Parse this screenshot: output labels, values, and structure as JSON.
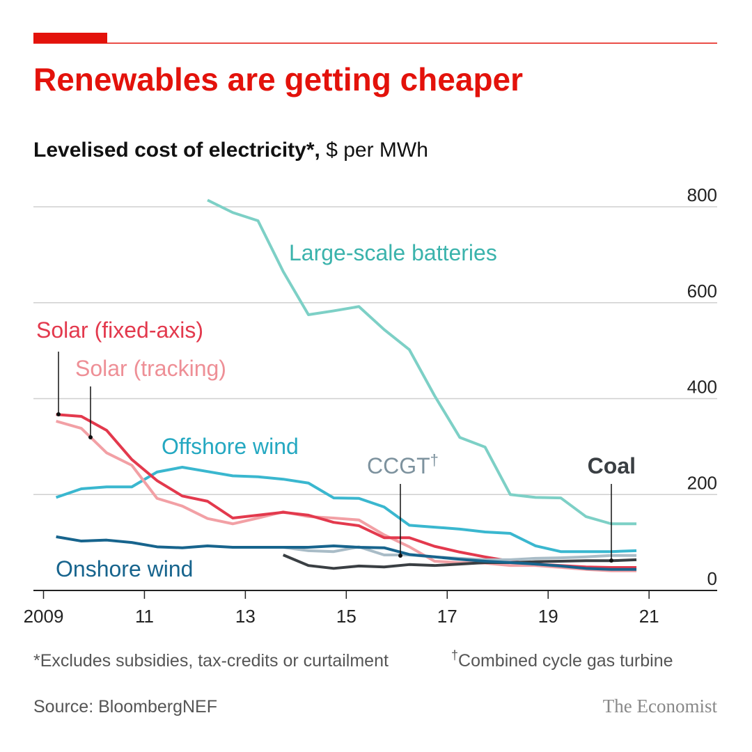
{
  "chart_data": {
    "type": "line",
    "title": "Renewables are getting cheaper",
    "subtitle_bold": "Levelised cost of electricity*,",
    "subtitle_rest": "$ per MWh",
    "x": [
      2009.25,
      2009.75,
      2010.25,
      2010.75,
      2011.25,
      2011.75,
      2012.25,
      2012.75,
      2013.25,
      2013.75,
      2014.25,
      2014.75,
      2015.25,
      2015.75,
      2016.25,
      2016.75,
      2017.25,
      2017.75,
      2018.25,
      2018.75,
      2019.25,
      2019.75,
      2020.25,
      2020.75
    ],
    "xlim": [
      2008.8,
      2022.35
    ],
    "xticks": [
      {
        "value": 2009,
        "label": "2009"
      },
      {
        "value": 2011,
        "label": "11"
      },
      {
        "value": 2013,
        "label": "13"
      },
      {
        "value": 2015,
        "label": "15"
      },
      {
        "value": 2017,
        "label": "17"
      },
      {
        "value": 2019,
        "label": "19"
      },
      {
        "value": 2021,
        "label": "21"
      }
    ],
    "ylim": [
      0,
      800
    ],
    "yticks": [
      0,
      200,
      400,
      600,
      800
    ],
    "grid": true,
    "series": [
      {
        "name": "Large-scale batteries",
        "color": "#7dd0c6",
        "values": [
          null,
          null,
          null,
          null,
          null,
          null,
          814,
          788,
          771,
          665,
          575,
          583,
          592,
          544,
          502,
          406,
          319,
          299,
          200,
          194,
          193,
          154,
          139,
          139
        ]
      },
      {
        "name": "Offshore wind",
        "color": "#3ab7cf",
        "values": [
          194,
          212,
          216,
          216,
          247,
          257,
          248,
          239,
          237,
          232,
          224,
          193,
          192,
          174,
          136,
          132,
          128,
          122,
          119,
          93,
          81,
          81,
          81,
          83
        ]
      },
      {
        "name": "Solar (tracking)",
        "color": "#f2a0a5",
        "values": [
          353,
          338,
          287,
          261,
          192,
          176,
          150,
          139,
          151,
          164,
          154,
          151,
          147,
          116,
          91,
          61,
          58,
          57,
          52,
          52,
          48,
          44,
          41,
          41
        ]
      },
      {
        "name": "Solar (fixed-axis)",
        "color": "#e3394d",
        "values": [
          367,
          363,
          334,
          273,
          229,
          197,
          186,
          151,
          157,
          163,
          157,
          142,
          135,
          110,
          110,
          92,
          80,
          70,
          61,
          55,
          52,
          49,
          48,
          48
        ]
      },
      {
        "name": "CCGT",
        "color": "#a9bcc7",
        "values": [
          null,
          null,
          null,
          null,
          null,
          null,
          null,
          null,
          null,
          90,
          83,
          81,
          91,
          74,
          74,
          70,
          67,
          64,
          64,
          67,
          68,
          70,
          73,
          73
        ]
      },
      {
        "name": "Coal",
        "color": "#3a3f43",
        "values": [
          null,
          null,
          null,
          null,
          null,
          null,
          null,
          null,
          null,
          74,
          52,
          46,
          51,
          49,
          54,
          52,
          55,
          58,
          58,
          60,
          61,
          62,
          62,
          64
        ]
      },
      {
        "name": "Onshore wind",
        "color": "#17648d",
        "values": [
          112,
          103,
          105,
          100,
          91,
          89,
          93,
          90,
          90,
          90,
          90,
          93,
          90,
          89,
          75,
          70,
          65,
          61,
          58,
          55,
          51,
          46,
          44,
          44
        ]
      }
    ],
    "ccgt_mark": "†",
    "footnote_1": "*Excludes subsidies, tax-credits or curtailment",
    "footnote_2_mark": "†",
    "footnote_2": "Combined cycle gas turbine",
    "source": "Source: BloombergNEF",
    "brand": "The Economist"
  }
}
